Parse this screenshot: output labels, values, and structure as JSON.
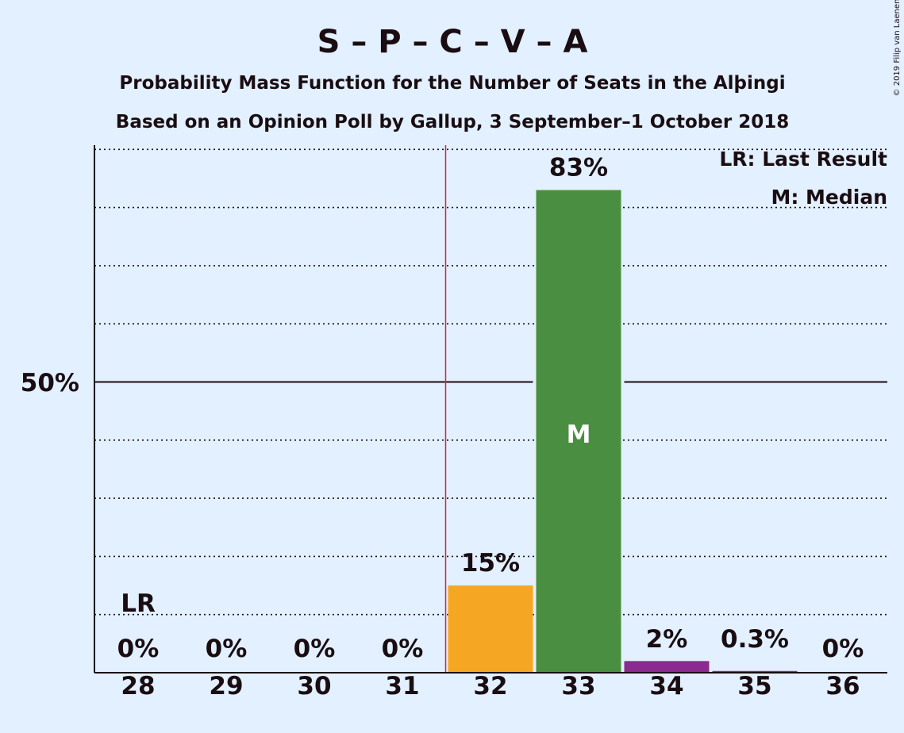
{
  "chart_data": {
    "type": "bar",
    "title": "S – P – C – V – A",
    "subtitle_1": "Probability Mass Function for the Number of Seats in the Alþingi",
    "subtitle_2": "Based on an Opinion Poll by Gallup, 3 September–1 October 2018",
    "copyright": "© 2019 Filip van Laenen",
    "legend": {
      "lr": "LR: Last Result",
      "m": "M: Median",
      "placement": "top-right"
    },
    "ylim": [
      0,
      100
    ],
    "y_marked": {
      "value": 50,
      "label": "50%"
    },
    "grid": {
      "dotted_lines_every": 10,
      "solid_line_at": 50
    },
    "categories": [
      "28",
      "29",
      "30",
      "31",
      "32",
      "33",
      "34",
      "35",
      "36"
    ],
    "values": [
      0,
      0,
      0,
      0,
      15,
      83,
      2,
      0.3,
      0
    ],
    "value_labels": [
      "0%",
      "0%",
      "0%",
      "0%",
      "15%",
      "83%",
      "2%",
      "0.3%",
      "0%"
    ],
    "bar_colors": [
      "#f5a623",
      "#f5a623",
      "#f5a623",
      "#f5a623",
      "#f5a623",
      "#4a8f41",
      "#8b2a8f",
      "#8b2a8f",
      "#8b2a8f"
    ],
    "last_result": {
      "category": "28",
      "label": "LR"
    },
    "median": {
      "category": "33",
      "label": "M"
    },
    "majority_line_after_category": "31",
    "colors": {
      "background": "#e2f0ff",
      "text": "#1a0d12",
      "majority_line": "#e0202a"
    }
  }
}
